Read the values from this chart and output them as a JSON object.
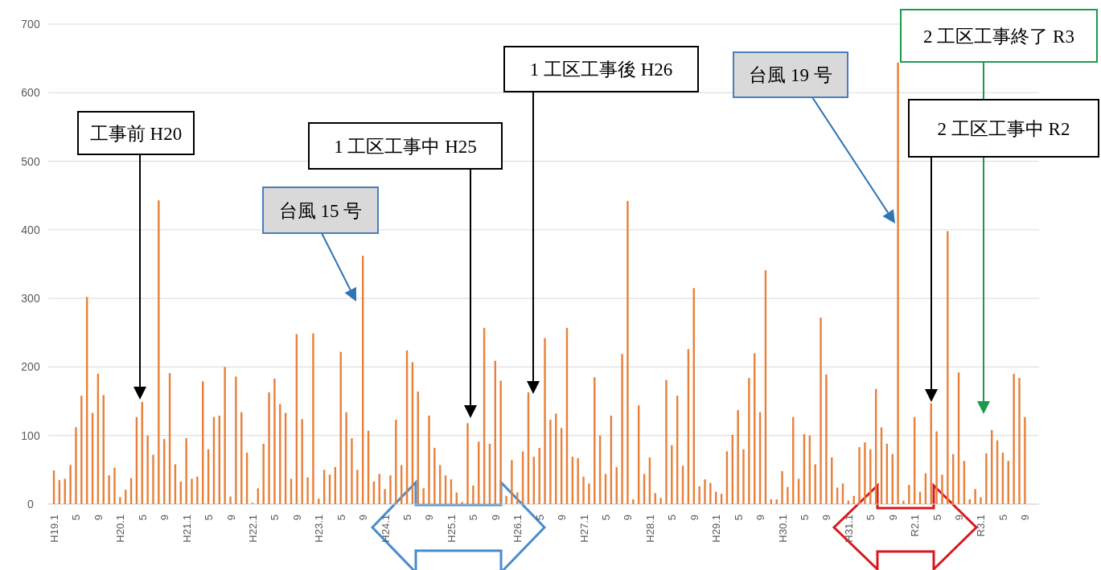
{
  "chart_data": {
    "type": "bar",
    "categories": [
      "H19.1",
      null,
      null,
      null,
      "5",
      null,
      null,
      null,
      "9",
      null,
      null,
      null,
      "H20.1",
      null,
      null,
      null,
      "5",
      null,
      null,
      null,
      "9",
      null,
      null,
      null,
      "H21.1",
      null,
      null,
      null,
      "5",
      null,
      null,
      null,
      "9",
      null,
      null,
      null,
      "H22.1",
      null,
      null,
      null,
      "5",
      null,
      null,
      null,
      "9",
      null,
      null,
      null,
      "H23.1",
      null,
      null,
      null,
      "5",
      null,
      null,
      null,
      "9",
      null,
      null,
      null,
      "H24.1",
      null,
      null,
      null,
      "5",
      null,
      null,
      null,
      "9",
      null,
      null,
      null,
      "H25.1",
      null,
      null,
      null,
      "5",
      null,
      null,
      null,
      "9",
      null,
      null,
      null,
      "H26.1",
      null,
      null,
      null,
      "5",
      null,
      null,
      null,
      "9",
      null,
      null,
      null,
      "H27.1",
      null,
      null,
      null,
      "5",
      null,
      null,
      null,
      "9",
      null,
      null,
      null,
      "H28.1",
      null,
      null,
      null,
      "5",
      null,
      null,
      null,
      "9",
      null,
      null,
      null,
      "H29.1",
      null,
      null,
      null,
      "5",
      null,
      null,
      null,
      "9",
      null,
      null,
      null,
      "H30.1",
      null,
      null,
      null,
      "5",
      null,
      null,
      null,
      "9",
      null,
      null,
      null,
      "H31.1",
      null,
      null,
      null,
      "5",
      null,
      null,
      null,
      "9",
      null,
      null,
      null,
      "R2.1",
      null,
      null,
      null,
      "5",
      null,
      null,
      null,
      "9",
      null,
      null,
      null,
      "R3.1",
      null,
      null,
      null,
      "5",
      null,
      null,
      null,
      "9"
    ],
    "values": [
      49,
      35,
      37,
      57,
      112,
      158,
      302,
      133,
      190,
      159,
      42,
      53,
      10,
      21,
      38,
      127,
      149,
      100,
      72,
      443,
      95,
      191,
      58,
      33,
      96,
      37,
      40,
      179,
      80,
      127,
      129,
      200,
      11,
      186,
      134,
      75,
      2,
      23,
      88,
      163,
      183,
      146,
      133,
      37,
      248,
      124,
      39,
      249,
      8,
      50,
      43,
      54,
      222,
      134,
      96,
      50,
      362,
      107,
      33,
      44,
      22,
      42,
      123,
      57,
      224,
      207,
      164,
      23,
      129,
      82,
      57,
      42,
      36,
      17,
      3,
      118,
      27,
      91,
      257,
      88,
      209,
      180,
      12,
      64,
      17,
      77,
      163,
      69,
      82,
      242,
      123,
      132,
      111,
      257,
      69,
      67,
      40,
      30,
      185,
      100,
      44,
      129,
      54,
      219,
      442,
      7,
      144,
      44,
      68,
      16,
      9,
      181,
      86,
      158,
      56,
      226,
      315,
      26,
      36,
      31,
      18,
      15,
      77,
      101,
      137,
      80,
      184,
      220,
      134,
      341,
      7,
      7,
      48,
      25,
      127,
      37,
      102,
      100,
      58,
      272,
      189,
      68,
      24,
      30,
      5,
      12,
      83,
      90,
      80,
      168,
      112,
      88,
      73,
      644,
      5,
      28,
      127,
      18,
      45,
      147,
      106,
      43,
      398,
      73,
      192,
      63,
      7,
      22,
      10,
      74,
      108,
      93,
      75,
      63,
      190,
      184,
      127
    ],
    "color": "#e8803a",
    "ylim": [
      0,
      700
    ],
    "yticks": [
      0,
      100,
      200,
      300,
      400,
      500,
      600,
      700
    ],
    "grid": "y",
    "annotations": [
      "工事前 H20",
      "台風 15 号",
      "1 工区工事中 H25",
      "1 工区工事後 H26",
      "台風 19 号",
      "2 工区工事終了 R3",
      "2 工区工事中 R2"
    ]
  }
}
